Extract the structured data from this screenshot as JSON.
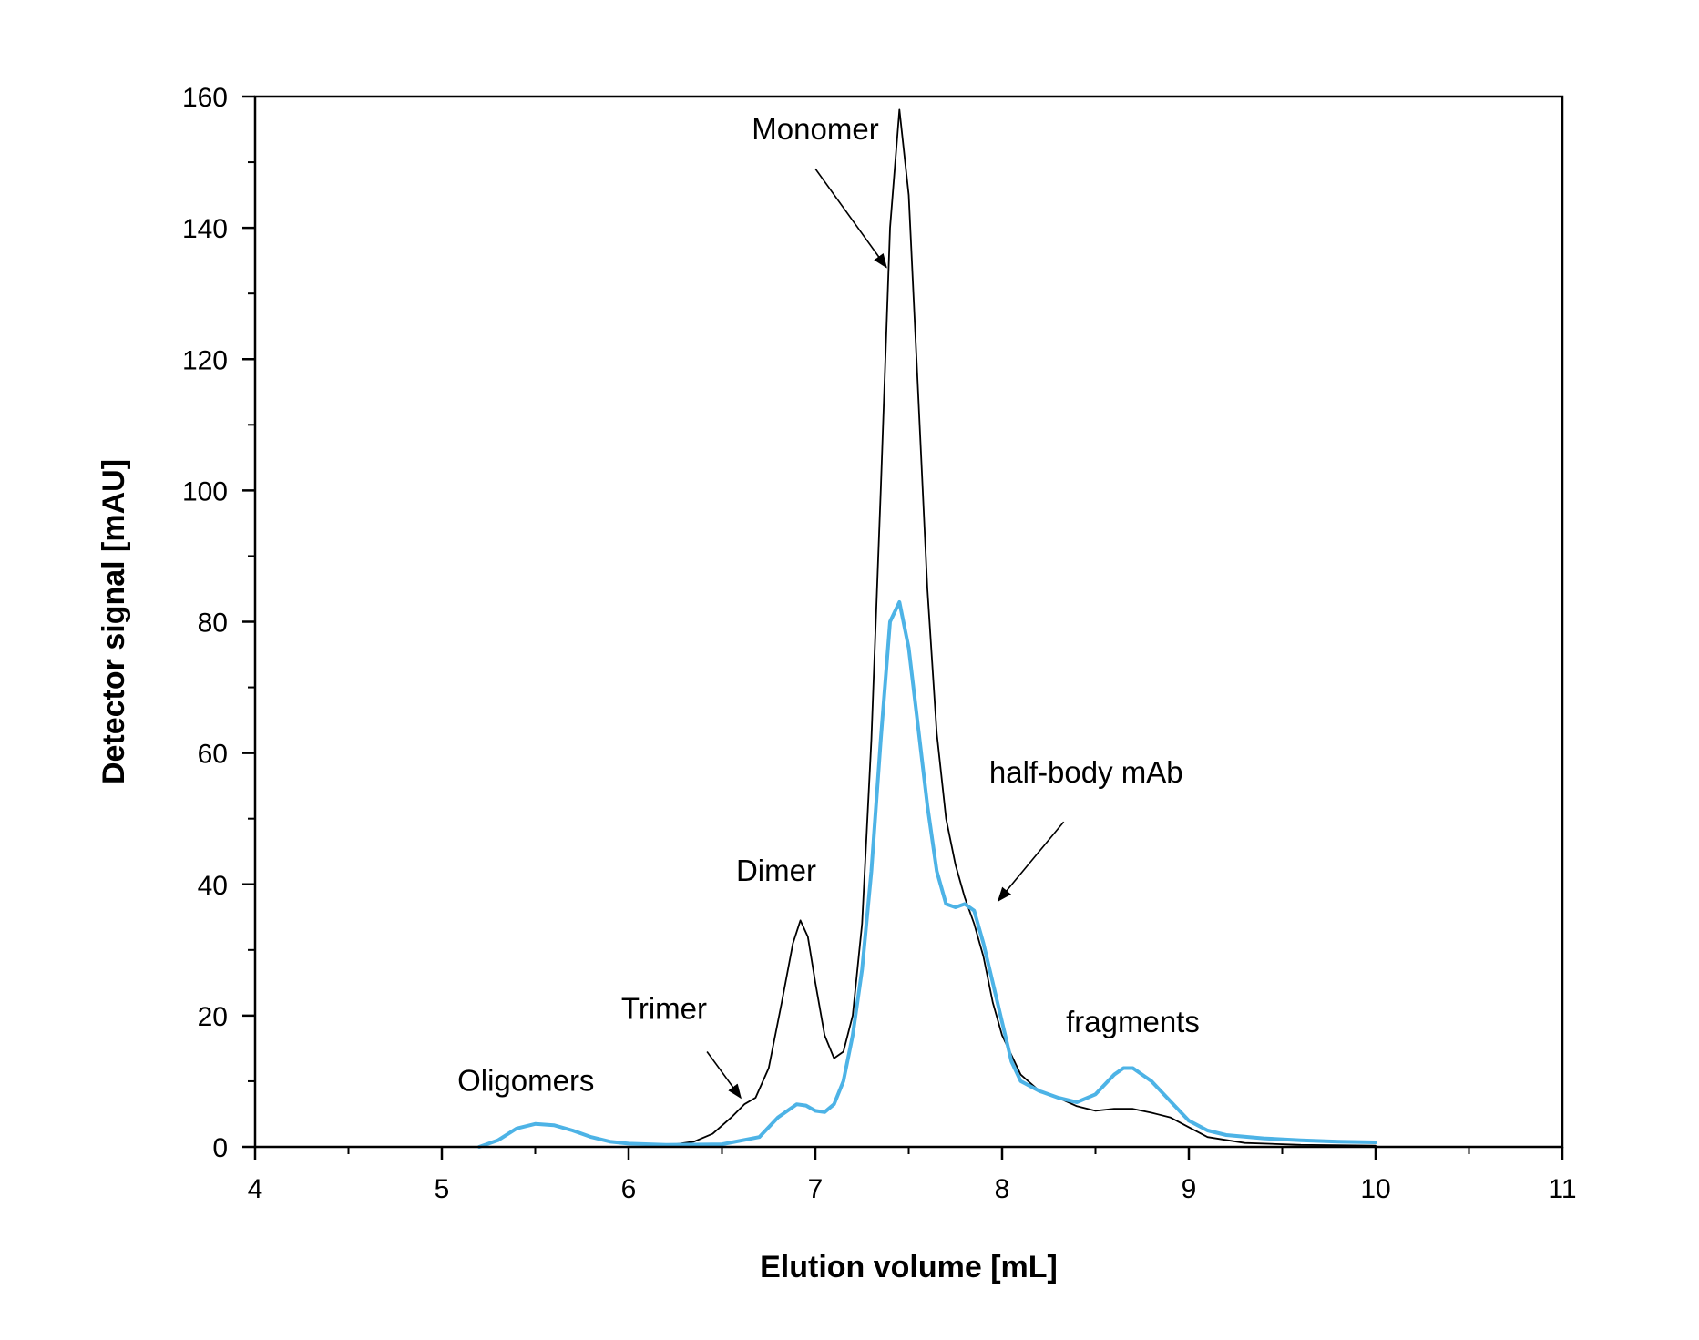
{
  "chart_data": {
    "type": "line",
    "title": "",
    "xlabel": "Elution volume [mL]",
    "ylabel": "Detector signal [mAU]",
    "xlim": [
      4,
      11
    ],
    "ylim": [
      0,
      160
    ],
    "xticks": [
      4,
      5,
      6,
      7,
      8,
      9,
      10,
      11
    ],
    "yticks": [
      0,
      20,
      40,
      60,
      80,
      100,
      120,
      140,
      160
    ],
    "x_minor_step": 0.5,
    "y_minor_step": 10,
    "grid": false,
    "legend": "none",
    "series": [
      {
        "color": "#000000",
        "points": [
          [
            6.2,
            0.2
          ],
          [
            6.35,
            0.8
          ],
          [
            6.45,
            2.0
          ],
          [
            6.55,
            4.5
          ],
          [
            6.62,
            6.5
          ],
          [
            6.68,
            7.5
          ],
          [
            6.75,
            12
          ],
          [
            6.82,
            22
          ],
          [
            6.88,
            31
          ],
          [
            6.92,
            34.5
          ],
          [
            6.96,
            32
          ],
          [
            7.0,
            25
          ],
          [
            7.05,
            17
          ],
          [
            7.1,
            13.5
          ],
          [
            7.15,
            14.5
          ],
          [
            7.2,
            20
          ],
          [
            7.25,
            34
          ],
          [
            7.3,
            62
          ],
          [
            7.35,
            100
          ],
          [
            7.4,
            140
          ],
          [
            7.45,
            158
          ],
          [
            7.5,
            145
          ],
          [
            7.55,
            115
          ],
          [
            7.6,
            85
          ],
          [
            7.65,
            63
          ],
          [
            7.7,
            50
          ],
          [
            7.75,
            43
          ],
          [
            7.8,
            38
          ],
          [
            7.85,
            34
          ],
          [
            7.9,
            29
          ],
          [
            7.95,
            22
          ],
          [
            8.0,
            17
          ],
          [
            8.1,
            11
          ],
          [
            8.2,
            8.5
          ],
          [
            8.3,
            7.5
          ],
          [
            8.4,
            6.2
          ],
          [
            8.5,
            5.5
          ],
          [
            8.6,
            5.8
          ],
          [
            8.7,
            5.8
          ],
          [
            8.8,
            5.2
          ],
          [
            8.9,
            4.5
          ],
          [
            9.0,
            3
          ],
          [
            9.1,
            1.5
          ],
          [
            9.3,
            0.6
          ],
          [
            9.6,
            0.3
          ],
          [
            10.0,
            0.2
          ]
        ]
      },
      {
        "color": "#4db3e6",
        "points": [
          [
            5.2,
            0
          ],
          [
            5.3,
            1.0
          ],
          [
            5.4,
            2.8
          ],
          [
            5.5,
            3.5
          ],
          [
            5.6,
            3.3
          ],
          [
            5.7,
            2.5
          ],
          [
            5.8,
            1.5
          ],
          [
            5.9,
            0.8
          ],
          [
            6.0,
            0.5
          ],
          [
            6.2,
            0.3
          ],
          [
            6.5,
            0.4
          ],
          [
            6.7,
            1.5
          ],
          [
            6.8,
            4.5
          ],
          [
            6.9,
            6.5
          ],
          [
            6.95,
            6.3
          ],
          [
            7.0,
            5.5
          ],
          [
            7.05,
            5.3
          ],
          [
            7.1,
            6.5
          ],
          [
            7.15,
            10
          ],
          [
            7.2,
            17
          ],
          [
            7.25,
            27
          ],
          [
            7.3,
            42
          ],
          [
            7.35,
            62
          ],
          [
            7.4,
            80
          ],
          [
            7.45,
            83
          ],
          [
            7.5,
            76
          ],
          [
            7.55,
            64
          ],
          [
            7.6,
            52
          ],
          [
            7.65,
            42
          ],
          [
            7.7,
            37
          ],
          [
            7.75,
            36.5
          ],
          [
            7.8,
            37
          ],
          [
            7.85,
            36
          ],
          [
            7.9,
            31
          ],
          [
            7.95,
            25
          ],
          [
            8.0,
            19
          ],
          [
            8.05,
            13
          ],
          [
            8.1,
            10
          ],
          [
            8.2,
            8.5
          ],
          [
            8.3,
            7.5
          ],
          [
            8.4,
            6.8
          ],
          [
            8.5,
            8
          ],
          [
            8.6,
            11
          ],
          [
            8.65,
            12
          ],
          [
            8.7,
            12
          ],
          [
            8.8,
            10
          ],
          [
            8.9,
            7
          ],
          [
            9.0,
            4
          ],
          [
            9.1,
            2.5
          ],
          [
            9.2,
            1.8
          ],
          [
            9.4,
            1.3
          ],
          [
            9.6,
            1.0
          ],
          [
            9.8,
            0.8
          ],
          [
            10.0,
            0.7
          ]
        ]
      }
    ],
    "annotations": [
      {
        "text": "Monomer",
        "x": 7.0,
        "y": 153.5,
        "anchor": "middle",
        "arrow": {
          "from": [
            7.0,
            149
          ],
          "to": [
            7.38,
            134
          ]
        }
      },
      {
        "text": "half-body mAb",
        "x": 8.45,
        "y": 55.5,
        "anchor": "middle",
        "arrow": {
          "from": [
            8.33,
            49.5
          ],
          "to": [
            7.98,
            37.5
          ]
        }
      },
      {
        "text": "Dimer",
        "x": 6.79,
        "y": 40.5,
        "anchor": "middle",
        "arrow": null
      },
      {
        "text": "Trimer",
        "x": 6.19,
        "y": 19.5,
        "anchor": "middle",
        "arrow": {
          "from": [
            6.42,
            14.5
          ],
          "to": [
            6.6,
            7.5
          ]
        }
      },
      {
        "text": "Oligomers",
        "x": 5.45,
        "y": 8.5,
        "anchor": "middle",
        "arrow": null
      },
      {
        "text": "fragments",
        "x": 8.7,
        "y": 17.5,
        "anchor": "middle",
        "arrow": null
      }
    ]
  }
}
